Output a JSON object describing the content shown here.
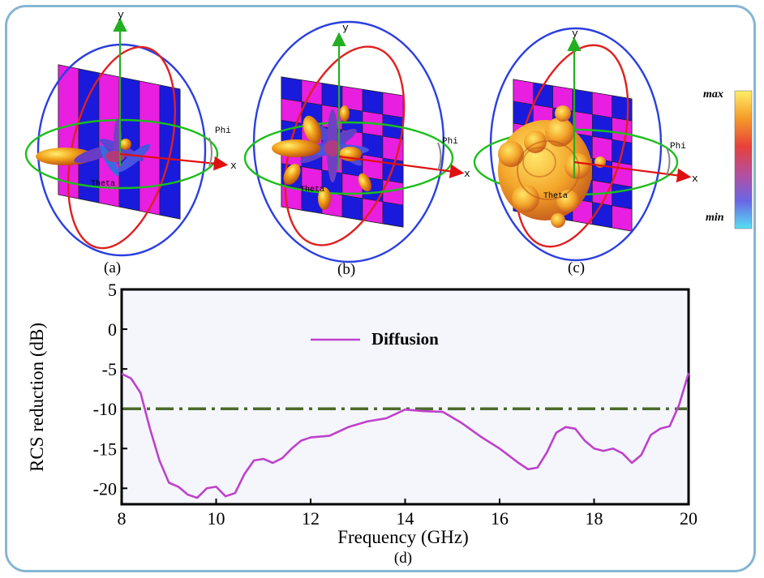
{
  "panels": [
    {
      "caption": "(a)",
      "x_label": "x",
      "y_label": "y",
      "phi_label": "Phi",
      "theta_label": "Theta"
    },
    {
      "caption": "(b)",
      "x_label": "x",
      "y_label": "y",
      "phi_label": "Phi",
      "theta_label": "Theta"
    },
    {
      "caption": "(c)",
      "x_label": "x",
      "y_label": "y",
      "phi_label": "Phi",
      "theta_label": "Theta"
    }
  ],
  "colorbar": {
    "max_label": "max",
    "min_label": "min"
  },
  "colors": {
    "unit_cell_a": "#e81ee0",
    "unit_cell_b": "#1a1adc",
    "series": "#c040cc",
    "threshold": "#4a6a2a",
    "frame": "#86b6d2"
  },
  "chart_data": {
    "type": "line",
    "caption": "(d)",
    "xlabel": "Frequency (GHz)",
    "ylabel": "RCS reduction (dB)",
    "xlim": [
      8,
      20
    ],
    "ylim": [
      -22,
      5
    ],
    "xticks": [
      8,
      10,
      12,
      14,
      16,
      18,
      20
    ],
    "yticks": [
      5,
      0,
      -5,
      -10,
      -15,
      -20
    ],
    "legend_position": "top-center",
    "reference_lines": [
      {
        "y": -10,
        "style": "dash-dot"
      }
    ],
    "series": [
      {
        "name": "Diffusion",
        "x": [
          8,
          8.2,
          8.4,
          8.6,
          8.8,
          9.0,
          9.2,
          9.4,
          9.6,
          9.8,
          10.0,
          10.2,
          10.4,
          10.6,
          10.8,
          11.0,
          11.2,
          11.4,
          11.6,
          11.8,
          12.0,
          12.4,
          12.8,
          13.2,
          13.6,
          14.0,
          14.4,
          14.8,
          15.2,
          15.6,
          16.0,
          16.4,
          16.6,
          16.8,
          17.0,
          17.2,
          17.4,
          17.6,
          17.8,
          18.0,
          18.2,
          18.4,
          18.6,
          18.8,
          19.0,
          19.2,
          19.4,
          19.6,
          19.8,
          20.0
        ],
        "values": [
          -5.6,
          -6.2,
          -8.0,
          -12.5,
          -16.5,
          -19.3,
          -19.8,
          -20.8,
          -21.2,
          -20.0,
          -19.8,
          -21.0,
          -20.6,
          -18.2,
          -16.5,
          -16.3,
          -16.8,
          -16.2,
          -15.0,
          -14.0,
          -13.6,
          -13.4,
          -12.3,
          -11.6,
          -11.2,
          -10.1,
          -10.3,
          -10.4,
          -11.8,
          -13.5,
          -15.0,
          -16.8,
          -17.6,
          -17.4,
          -15.5,
          -13.0,
          -12.3,
          -12.5,
          -14.0,
          -15.0,
          -15.3,
          -15.0,
          -15.6,
          -16.8,
          -15.8,
          -13.3,
          -12.5,
          -12.2,
          -9.5,
          -5.5
        ]
      }
    ]
  }
}
